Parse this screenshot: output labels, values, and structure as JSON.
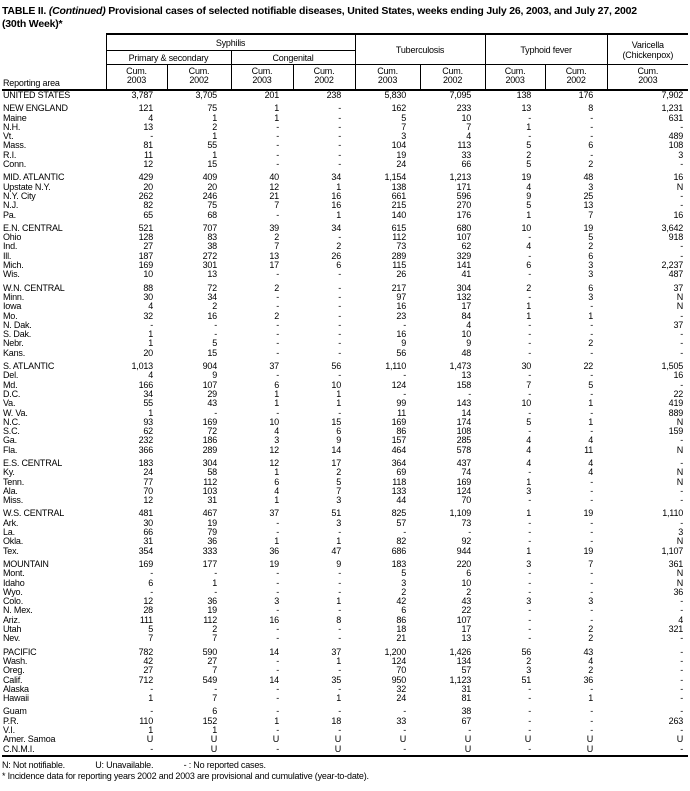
{
  "title": {
    "table_no": "TABLE II.",
    "continued": "(Continued)",
    "rest": "Provisional cases of selected notifiable diseases, United States, weeks ending July 26, 2003, and July 27, 2002",
    "line2": "(30th Week)*"
  },
  "header": {
    "reporting_area": "Reporting area",
    "groups": {
      "syphilis": "Syphilis",
      "primary_secondary": "Primary & secondary",
      "congenital": "Congenital",
      "tuberculosis": "Tuberculosis",
      "typhoid": "Typhoid fever",
      "varicella_line1": "Varicella",
      "varicella_line2": "(Chickenpox)"
    },
    "cum_label": "Cum.",
    "col_years": [
      "2003",
      "2002",
      "2003",
      "2002",
      "2003",
      "2002",
      "2003",
      "2002",
      "2003"
    ]
  },
  "rows": [
    {
      "label": "UNITED STATES",
      "type": "total",
      "values": [
        "3,787",
        "3,705",
        "201",
        "238",
        "5,830",
        "7,095",
        "138",
        "176",
        "7,902"
      ]
    },
    {
      "type": "spacer"
    },
    {
      "label": "NEW ENGLAND",
      "type": "region",
      "values": [
        "121",
        "75",
        "1",
        "-",
        "162",
        "233",
        "13",
        "8",
        "1,231"
      ]
    },
    {
      "label": "Maine",
      "type": "state",
      "values": [
        "4",
        "1",
        "1",
        "-",
        "5",
        "10",
        "-",
        "-",
        "631"
      ]
    },
    {
      "label": "N.H.",
      "type": "state",
      "values": [
        "13",
        "2",
        "-",
        "-",
        "7",
        "7",
        "1",
        "-",
        "-"
      ]
    },
    {
      "label": "Vt.",
      "type": "state",
      "values": [
        "-",
        "1",
        "-",
        "-",
        "3",
        "4",
        "-",
        "-",
        "489"
      ]
    },
    {
      "label": "Mass.",
      "type": "state",
      "values": [
        "81",
        "55",
        "-",
        "-",
        "104",
        "113",
        "5",
        "6",
        "108"
      ]
    },
    {
      "label": "R.I.",
      "type": "state",
      "values": [
        "11",
        "1",
        "-",
        "-",
        "19",
        "33",
        "2",
        "-",
        "3"
      ]
    },
    {
      "label": "Conn.",
      "type": "state",
      "values": [
        "12",
        "15",
        "-",
        "-",
        "24",
        "66",
        "5",
        "2",
        "-"
      ]
    },
    {
      "type": "spacer"
    },
    {
      "label": "MID. ATLANTIC",
      "type": "region",
      "values": [
        "429",
        "409",
        "40",
        "34",
        "1,154",
        "1,213",
        "19",
        "48",
        "16"
      ]
    },
    {
      "label": "Upstate N.Y.",
      "type": "state",
      "values": [
        "20",
        "20",
        "12",
        "1",
        "138",
        "171",
        "4",
        "3",
        "N"
      ]
    },
    {
      "label": "N.Y. City",
      "type": "state",
      "values": [
        "262",
        "246",
        "21",
        "16",
        "661",
        "596",
        "9",
        "25",
        "-"
      ]
    },
    {
      "label": "N.J.",
      "type": "state",
      "values": [
        "82",
        "75",
        "7",
        "16",
        "215",
        "270",
        "5",
        "13",
        "-"
      ]
    },
    {
      "label": "Pa.",
      "type": "state",
      "values": [
        "65",
        "68",
        "-",
        "1",
        "140",
        "176",
        "1",
        "7",
        "16"
      ]
    },
    {
      "type": "spacer"
    },
    {
      "label": "E.N. CENTRAL",
      "type": "region",
      "values": [
        "521",
        "707",
        "39",
        "34",
        "615",
        "680",
        "10",
        "19",
        "3,642"
      ]
    },
    {
      "label": "Ohio",
      "type": "state",
      "values": [
        "128",
        "83",
        "2",
        "-",
        "112",
        "107",
        "-",
        "5",
        "918"
      ]
    },
    {
      "label": "Ind.",
      "type": "state",
      "values": [
        "27",
        "38",
        "7",
        "2",
        "73",
        "62",
        "4",
        "2",
        "-"
      ]
    },
    {
      "label": "Ill.",
      "type": "state",
      "values": [
        "187",
        "272",
        "13",
        "26",
        "289",
        "329",
        "-",
        "6",
        "-"
      ]
    },
    {
      "label": "Mich.",
      "type": "state",
      "values": [
        "169",
        "301",
        "17",
        "6",
        "115",
        "141",
        "6",
        "3",
        "2,237"
      ]
    },
    {
      "label": "Wis.",
      "type": "state",
      "values": [
        "10",
        "13",
        "-",
        "-",
        "26",
        "41",
        "-",
        "3",
        "487"
      ]
    },
    {
      "type": "spacer"
    },
    {
      "label": "W.N. CENTRAL",
      "type": "region",
      "values": [
        "88",
        "72",
        "2",
        "-",
        "217",
        "304",
        "2",
        "6",
        "37"
      ]
    },
    {
      "label": "Minn.",
      "type": "state",
      "values": [
        "30",
        "34",
        "-",
        "-",
        "97",
        "132",
        "-",
        "3",
        "N"
      ]
    },
    {
      "label": "Iowa",
      "type": "state",
      "values": [
        "4",
        "2",
        "-",
        "-",
        "16",
        "17",
        "1",
        "-",
        "N"
      ]
    },
    {
      "label": "Mo.",
      "type": "state",
      "values": [
        "32",
        "16",
        "2",
        "-",
        "23",
        "84",
        "1",
        "1",
        "-"
      ]
    },
    {
      "label": "N. Dak.",
      "type": "state",
      "values": [
        "-",
        "-",
        "-",
        "-",
        "-",
        "4",
        "-",
        "-",
        "37"
      ]
    },
    {
      "label": "S. Dak.",
      "type": "state",
      "values": [
        "1",
        "-",
        "-",
        "-",
        "16",
        "10",
        "-",
        "-",
        "-"
      ]
    },
    {
      "label": "Nebr.",
      "type": "state",
      "values": [
        "1",
        "5",
        "-",
        "-",
        "9",
        "9",
        "-",
        "2",
        "-"
      ]
    },
    {
      "label": "Kans.",
      "type": "state",
      "values": [
        "20",
        "15",
        "-",
        "-",
        "56",
        "48",
        "-",
        "-",
        "-"
      ]
    },
    {
      "type": "spacer"
    },
    {
      "label": "S. ATLANTIC",
      "type": "region",
      "values": [
        "1,013",
        "904",
        "37",
        "56",
        "1,110",
        "1,473",
        "30",
        "22",
        "1,505"
      ]
    },
    {
      "label": "Del.",
      "type": "state",
      "values": [
        "4",
        "9",
        "-",
        "-",
        "-",
        "13",
        "-",
        "-",
        "16"
      ]
    },
    {
      "label": "Md.",
      "type": "state",
      "values": [
        "166",
        "107",
        "6",
        "10",
        "124",
        "158",
        "7",
        "5",
        "-"
      ]
    },
    {
      "label": "D.C.",
      "type": "state",
      "values": [
        "34",
        "29",
        "1",
        "1",
        "-",
        "-",
        "-",
        "-",
        "22"
      ]
    },
    {
      "label": "Va.",
      "type": "state",
      "values": [
        "55",
        "43",
        "1",
        "1",
        "99",
        "143",
        "10",
        "1",
        "419"
      ]
    },
    {
      "label": "W. Va.",
      "type": "state",
      "values": [
        "1",
        "-",
        "-",
        "-",
        "11",
        "14",
        "-",
        "-",
        "889"
      ]
    },
    {
      "label": "N.C.",
      "type": "state",
      "values": [
        "93",
        "169",
        "10",
        "15",
        "169",
        "174",
        "5",
        "1",
        "N"
      ]
    },
    {
      "label": "S.C.",
      "type": "state",
      "values": [
        "62",
        "72",
        "4",
        "6",
        "86",
        "108",
        "-",
        "-",
        "159"
      ]
    },
    {
      "label": "Ga.",
      "type": "state",
      "values": [
        "232",
        "186",
        "3",
        "9",
        "157",
        "285",
        "4",
        "4",
        "-"
      ]
    },
    {
      "label": "Fla.",
      "type": "state",
      "values": [
        "366",
        "289",
        "12",
        "14",
        "464",
        "578",
        "4",
        "11",
        "N"
      ]
    },
    {
      "type": "spacer"
    },
    {
      "label": "E.S. CENTRAL",
      "type": "region",
      "values": [
        "183",
        "304",
        "12",
        "17",
        "364",
        "437",
        "4",
        "4",
        "-"
      ]
    },
    {
      "label": "Ky.",
      "type": "state",
      "values": [
        "24",
        "58",
        "1",
        "2",
        "69",
        "74",
        "-",
        "4",
        "N"
      ]
    },
    {
      "label": "Tenn.",
      "type": "state",
      "values": [
        "77",
        "112",
        "6",
        "5",
        "118",
        "169",
        "1",
        "-",
        "N"
      ]
    },
    {
      "label": "Ala.",
      "type": "state",
      "values": [
        "70",
        "103",
        "4",
        "7",
        "133",
        "124",
        "3",
        "-",
        "-"
      ]
    },
    {
      "label": "Miss.",
      "type": "state",
      "values": [
        "12",
        "31",
        "1",
        "3",
        "44",
        "70",
        "-",
        "-",
        "-"
      ]
    },
    {
      "type": "spacer"
    },
    {
      "label": "W.S. CENTRAL",
      "type": "region",
      "values": [
        "481",
        "467",
        "37",
        "51",
        "825",
        "1,109",
        "1",
        "19",
        "1,110"
      ]
    },
    {
      "label": "Ark.",
      "type": "state",
      "values": [
        "30",
        "19",
        "-",
        "3",
        "57",
        "73",
        "-",
        "-",
        "-"
      ]
    },
    {
      "label": "La.",
      "type": "state",
      "values": [
        "66",
        "79",
        "-",
        "-",
        "-",
        "-",
        "-",
        "-",
        "3"
      ]
    },
    {
      "label": "Okla.",
      "type": "state",
      "values": [
        "31",
        "36",
        "1",
        "1",
        "82",
        "92",
        "-",
        "-",
        "N"
      ]
    },
    {
      "label": "Tex.",
      "type": "state",
      "values": [
        "354",
        "333",
        "36",
        "47",
        "686",
        "944",
        "1",
        "19",
        "1,107"
      ]
    },
    {
      "type": "spacer"
    },
    {
      "label": "MOUNTAIN",
      "type": "region",
      "values": [
        "169",
        "177",
        "19",
        "9",
        "183",
        "220",
        "3",
        "7",
        "361"
      ]
    },
    {
      "label": "Mont.",
      "type": "state",
      "values": [
        "-",
        "-",
        "-",
        "-",
        "5",
        "6",
        "-",
        "-",
        "N"
      ]
    },
    {
      "label": "Idaho",
      "type": "state",
      "values": [
        "6",
        "1",
        "-",
        "-",
        "3",
        "10",
        "-",
        "-",
        "N"
      ]
    },
    {
      "label": "Wyo.",
      "type": "state",
      "values": [
        "-",
        "-",
        "-",
        "-",
        "2",
        "2",
        "-",
        "-",
        "36"
      ]
    },
    {
      "label": "Colo.",
      "type": "state",
      "values": [
        "12",
        "36",
        "3",
        "1",
        "42",
        "43",
        "3",
        "3",
        "-"
      ]
    },
    {
      "label": "N. Mex.",
      "type": "state",
      "values": [
        "28",
        "19",
        "-",
        "-",
        "6",
        "22",
        "-",
        "-",
        "-"
      ]
    },
    {
      "label": "Ariz.",
      "type": "state",
      "values": [
        "111",
        "112",
        "16",
        "8",
        "86",
        "107",
        "-",
        "-",
        "4"
      ]
    },
    {
      "label": "Utah",
      "type": "state",
      "values": [
        "5",
        "2",
        "-",
        "-",
        "18",
        "17",
        "-",
        "2",
        "321"
      ]
    },
    {
      "label": "Nev.",
      "type": "state",
      "values": [
        "7",
        "7",
        "-",
        "-",
        "21",
        "13",
        "-",
        "2",
        "-"
      ]
    },
    {
      "type": "spacer"
    },
    {
      "label": "PACIFIC",
      "type": "region",
      "values": [
        "782",
        "590",
        "14",
        "37",
        "1,200",
        "1,426",
        "56",
        "43",
        "-"
      ]
    },
    {
      "label": "Wash.",
      "type": "state",
      "values": [
        "42",
        "27",
        "-",
        "1",
        "124",
        "134",
        "2",
        "4",
        "-"
      ]
    },
    {
      "label": "Oreg.",
      "type": "state",
      "values": [
        "27",
        "7",
        "-",
        "-",
        "70",
        "57",
        "3",
        "2",
        "-"
      ]
    },
    {
      "label": "Calif.",
      "type": "state",
      "values": [
        "712",
        "549",
        "14",
        "35",
        "950",
        "1,123",
        "51",
        "36",
        "-"
      ]
    },
    {
      "label": "Alaska",
      "type": "state",
      "values": [
        "-",
        "-",
        "-",
        "-",
        "32",
        "31",
        "-",
        "-",
        "-"
      ]
    },
    {
      "label": "Hawaii",
      "type": "state",
      "values": [
        "1",
        "7",
        "-",
        "1",
        "24",
        "81",
        "-",
        "1",
        "-"
      ]
    },
    {
      "type": "spacer"
    },
    {
      "label": "Guam",
      "type": "territory",
      "values": [
        "-",
        "6",
        "-",
        "-",
        "-",
        "38",
        "-",
        "-",
        "-"
      ]
    },
    {
      "label": "P.R.",
      "type": "territory",
      "values": [
        "110",
        "152",
        "1",
        "18",
        "33",
        "67",
        "-",
        "-",
        "263"
      ]
    },
    {
      "label": "V.I.",
      "type": "territory",
      "values": [
        "1",
        "1",
        "-",
        "-",
        "-",
        "-",
        "-",
        "-",
        "-"
      ]
    },
    {
      "label": "Amer. Samoa",
      "type": "territory",
      "values": [
        "U",
        "U",
        "U",
        "U",
        "U",
        "U",
        "U",
        "U",
        "U"
      ]
    },
    {
      "label": "C.N.M.I.",
      "type": "territory",
      "values": [
        "-",
        "U",
        "-",
        "U",
        "-",
        "U",
        "-",
        "U",
        "-"
      ]
    }
  ],
  "footnotes": {
    "seg1": "N: Not notifiable.",
    "seg2": "U: Unavailable.",
    "seg3": "- : No reported cases.",
    "line2": "* Incidence data for reporting years 2002 and 2003 are provisional and cumulative (year-to-date)."
  }
}
